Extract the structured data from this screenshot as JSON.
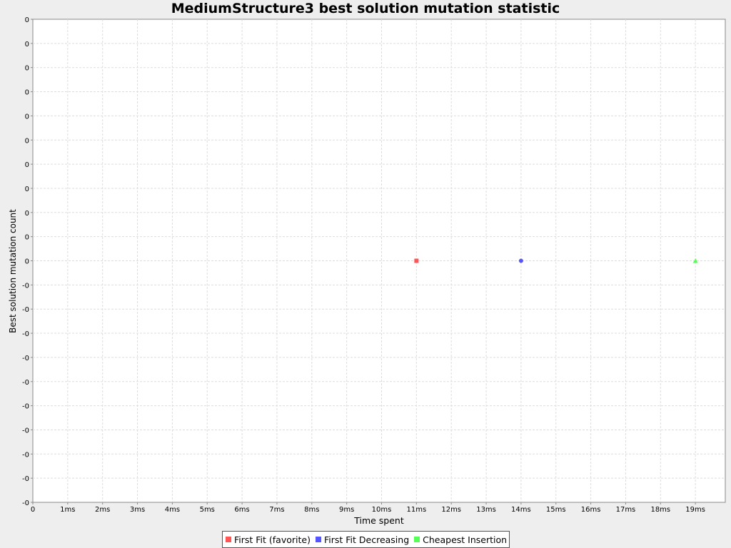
{
  "chart_data": {
    "type": "scatter",
    "title": "MediumStructure3 best solution mutation statistic",
    "xlabel": "Time spent",
    "ylabel": "Best solution mutation count",
    "x_ticks": [
      "0",
      "1ms",
      "2ms",
      "3ms",
      "4ms",
      "5ms",
      "6ms",
      "7ms",
      "8ms",
      "9ms",
      "10ms",
      "11ms",
      "12ms",
      "13ms",
      "14ms",
      "15ms",
      "16ms",
      "17ms",
      "18ms",
      "19ms"
    ],
    "y_ticks": [
      "0",
      "0",
      "0",
      "0",
      "0",
      "0",
      "0",
      "0",
      "0",
      "0",
      "0",
      "-0",
      "-0",
      "-0",
      "-0",
      "-0",
      "-0",
      "-0",
      "-0",
      "-0",
      "-0"
    ],
    "xlim": [
      0,
      20
    ],
    "ylim": [
      -1,
      1
    ],
    "grid": true,
    "legend_position": "bottom",
    "series": [
      {
        "name": "First Fit (favorite)",
        "color": "#ff5555",
        "marker": "square",
        "points": [
          {
            "x": 11,
            "y": 0
          }
        ]
      },
      {
        "name": "First Fit Decreasing",
        "color": "#5555ff",
        "marker": "circle",
        "points": [
          {
            "x": 14,
            "y": 0
          }
        ]
      },
      {
        "name": "Cheapest Insertion",
        "color": "#55ff55",
        "marker": "triangle",
        "points": [
          {
            "x": 19,
            "y": 0
          }
        ]
      }
    ]
  }
}
